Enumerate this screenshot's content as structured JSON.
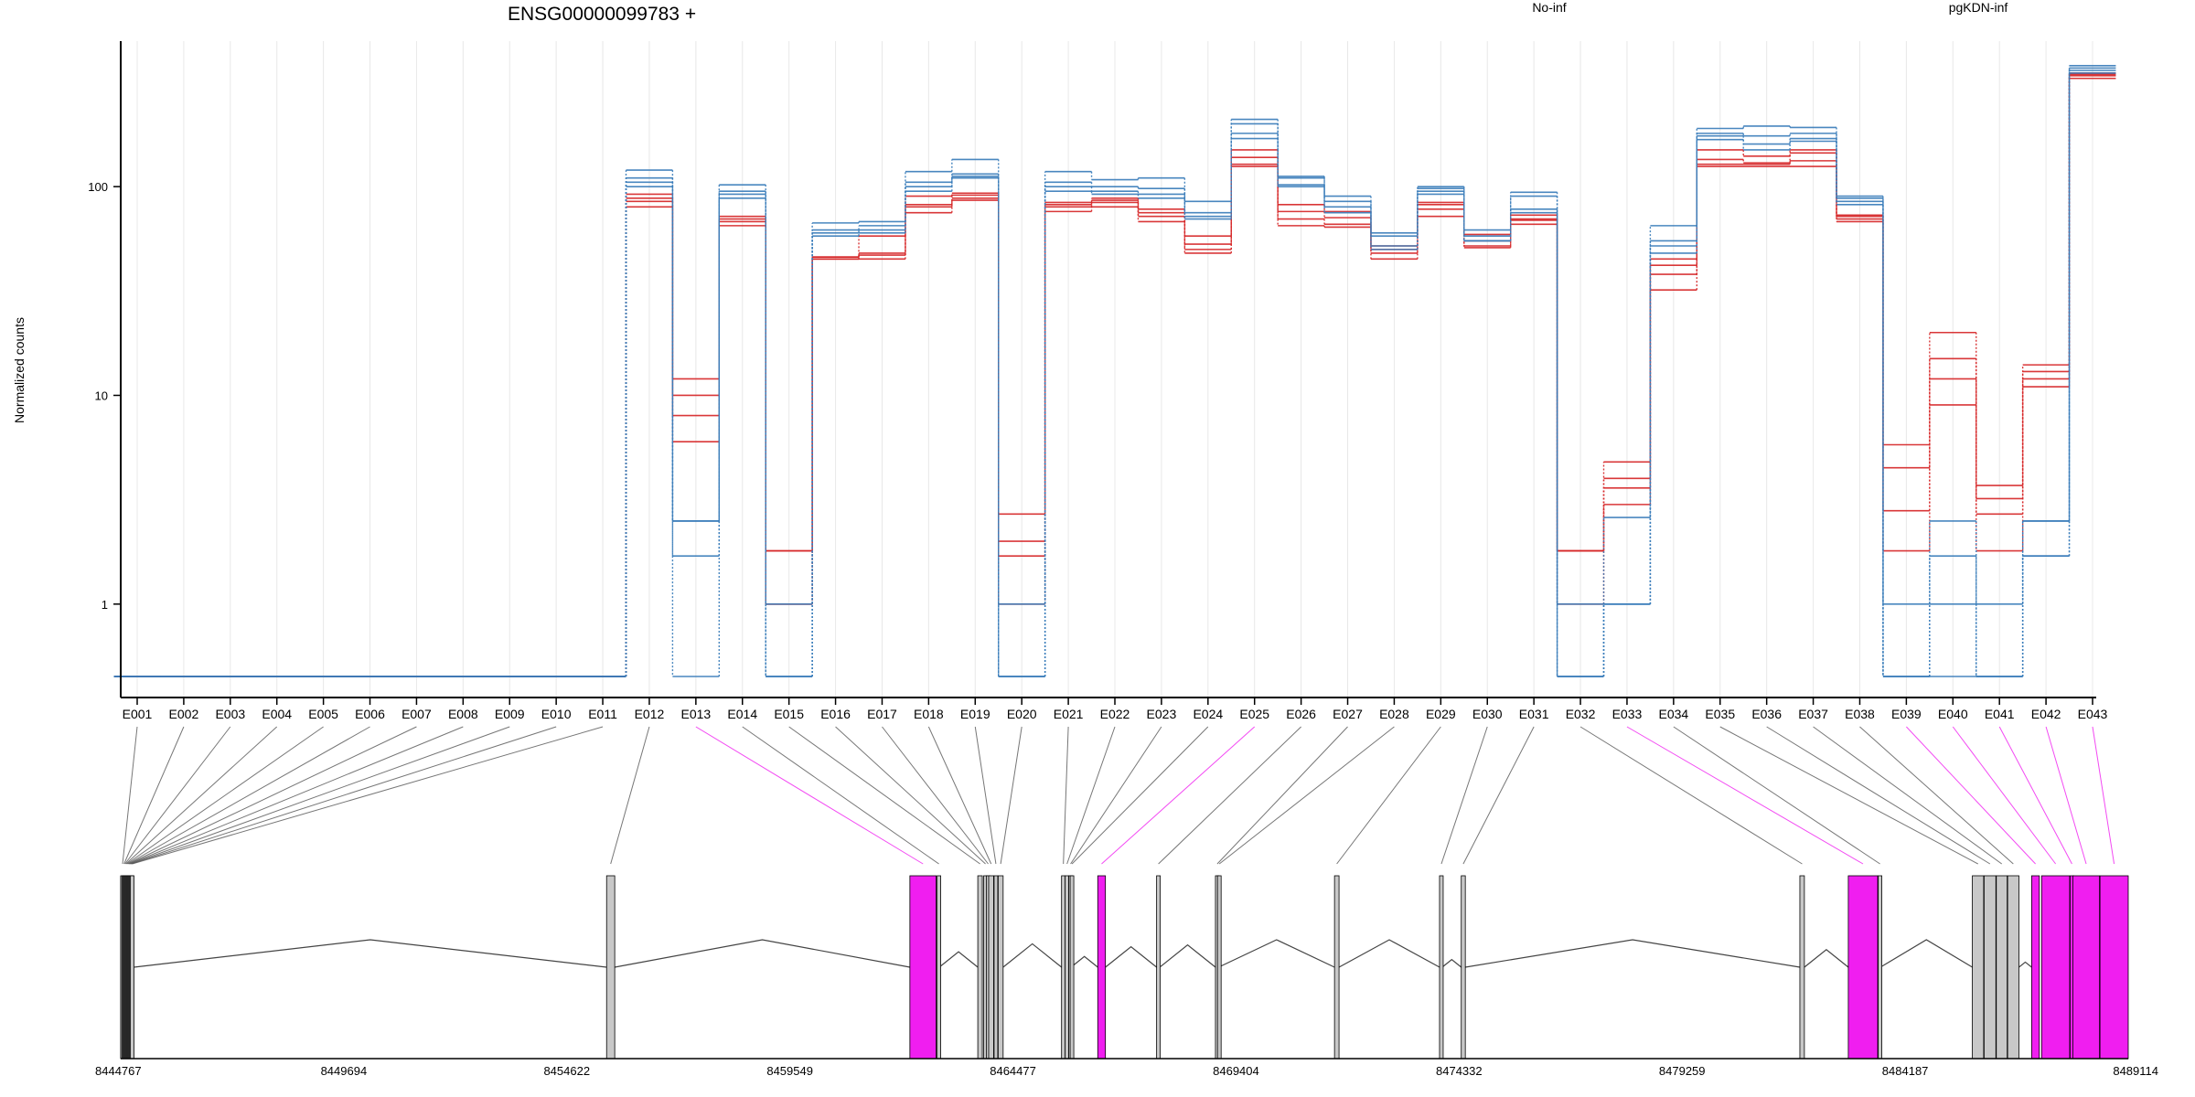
{
  "chart_data": {
    "type": "line",
    "title": "ENSG00000099783 +",
    "ylabel": "Normalized counts",
    "yscale": "log",
    "ylim": [
      0.45,
      450
    ],
    "yticks": [
      1,
      10,
      100
    ],
    "ytick_labels": [
      "1",
      "10",
      "100"
    ],
    "grid": "vertical",
    "legend_position": "top-right",
    "colors": {
      "No-inf": "#d62728",
      "pgKDN-inf": "#3a7dba",
      "highlight": "#f01ef0",
      "exon_fill": "#c8c8c8"
    },
    "exons": [
      "E001",
      "E002",
      "E003",
      "E004",
      "E005",
      "E006",
      "E007",
      "E008",
      "E009",
      "E010",
      "E011",
      "E012",
      "E013",
      "E014",
      "E015",
      "E016",
      "E017",
      "E018",
      "E019",
      "E020",
      "E021",
      "E022",
      "E023",
      "E024",
      "E025",
      "E026",
      "E027",
      "E028",
      "E029",
      "E030",
      "E031",
      "E032",
      "E033",
      "E034",
      "E035",
      "E036",
      "E037",
      "E038",
      "E039",
      "E040",
      "E041",
      "E042",
      "E043"
    ],
    "series": [
      {
        "name": "No-inf",
        "group": "No-inf",
        "values": [
          0.45,
          0.45,
          0.45,
          0.45,
          0.45,
          0.45,
          0.45,
          0.45,
          0.45,
          0.45,
          0.45,
          92,
          12,
          70,
          1.8,
          45,
          58,
          90,
          93,
          2.7,
          84,
          88,
          78,
          58,
          150,
          82,
          76,
          52,
          84,
          59,
          73,
          1.8,
          4.8,
          45,
          150,
          140,
          150,
          73,
          5.8,
          20,
          3.7,
          14,
          350
        ]
      },
      {
        "name": "No-inf",
        "group": "No-inf",
        "values": [
          0.45,
          0.45,
          0.45,
          0.45,
          0.45,
          0.45,
          0.45,
          0.45,
          0.45,
          0.45,
          0.45,
          85,
          8,
          65,
          1.0,
          45,
          45,
          75,
          88,
          1.7,
          76,
          80,
          68,
          48,
          125,
          70,
          66,
          45,
          72,
          52,
          66,
          1.0,
          3.0,
          32,
          125,
          125,
          125,
          68,
          2.8,
          12,
          2.7,
          11,
          330
        ]
      },
      {
        "name": "No-inf",
        "group": "No-inf",
        "values": [
          0.45,
          0.45,
          0.45,
          0.45,
          0.45,
          0.45,
          0.45,
          0.45,
          0.45,
          0.45,
          0.45,
          88,
          10,
          72,
          1.8,
          46,
          48,
          82,
          91,
          2.0,
          80,
          84,
          72,
          53,
          138,
          76,
          71,
          50,
          78,
          55,
          70,
          1.8,
          3.6,
          38,
          135,
          130,
          133,
          70,
          4.5,
          15,
          3.2,
          12,
          340
        ]
      },
      {
        "name": "No-inf",
        "group": "No-inf",
        "values": [
          0.45,
          0.45,
          0.45,
          0.45,
          0.45,
          0.45,
          0.45,
          0.45,
          0.45,
          0.45,
          0.45,
          80,
          6,
          68,
          1.0,
          46,
          47,
          80,
          86,
          1.0,
          82,
          86,
          75,
          50,
          128,
          65,
          64,
          48,
          82,
          51,
          69,
          1.8,
          4.0,
          42,
          128,
          128,
          145,
          72,
          1.8,
          9,
          1.8,
          13,
          345
        ]
      },
      {
        "name": "pgKDN-inf",
        "group": "pgKDN-inf",
        "values": [
          0.45,
          0.45,
          0.45,
          0.45,
          0.45,
          0.45,
          0.45,
          0.45,
          0.45,
          0.45,
          0.45,
          110,
          2.5,
          95,
          0.45,
          62,
          65,
          105,
          112,
          0.45,
          105,
          100,
          98,
          75,
          200,
          110,
          85,
          58,
          98,
          58,
          90,
          0.45,
          1.0,
          55,
          180,
          175,
          180,
          88,
          0.45,
          0.45,
          0.45,
          1.7,
          380
        ]
      },
      {
        "name": "pgKDN-inf",
        "group": "pgKDN-inf",
        "values": [
          0.45,
          0.45,
          0.45,
          0.45,
          0.45,
          0.45,
          0.45,
          0.45,
          0.45,
          0.45,
          0.45,
          120,
          1.7,
          102,
          1.0,
          67,
          68,
          118,
          135,
          1.0,
          118,
          108,
          110,
          85,
          210,
          112,
          90,
          60,
          100,
          62,
          94,
          1.0,
          2.6,
          65,
          190,
          195,
          192,
          90,
          1.0,
          2.5,
          1.0,
          2.5,
          370
        ]
      },
      {
        "name": "pgKDN-inf",
        "group": "pgKDN-inf",
        "values": [
          0.45,
          0.45,
          0.45,
          0.45,
          0.45,
          0.45,
          0.45,
          0.45,
          0.45,
          0.45,
          0.45,
          100,
          0.45,
          88,
          0.45,
          58,
          62,
          95,
          110,
          0.45,
          95,
          92,
          88,
          70,
          180,
          100,
          80,
          52,
          92,
          55,
          75,
          0.45,
          1.0,
          48,
          168,
          160,
          170,
          82,
          0.45,
          1.7,
          0.45,
          2.5,
          360
        ]
      },
      {
        "name": "pgKDN-inf",
        "group": "pgKDN-inf",
        "values": [
          0.45,
          0.45,
          0.45,
          0.45,
          0.45,
          0.45,
          0.45,
          0.45,
          0.45,
          0.45,
          0.45,
          105,
          2.5,
          92,
          0.45,
          60,
          60,
          100,
          115,
          0.45,
          100,
          95,
          92,
          72,
          170,
          102,
          75,
          50,
          95,
          55,
          78,
          0.45,
          1.0,
          52,
          175,
          150,
          165,
          85,
          0.45,
          1.0,
          0.45,
          1.7,
          350
        ]
      }
    ],
    "genomic_axis": {
      "tick_labels": [
        "8444767",
        "8449694",
        "8454622",
        "8459549",
        "8464477",
        "8469404",
        "8474332",
        "8479259",
        "8484187",
        "8489114"
      ],
      "range": [
        8444767,
        8489114
      ]
    },
    "exon_features": [
      {
        "exon": "E001",
        "start": 8444767,
        "end": 8444790,
        "highlight": false
      },
      {
        "exon": "E002",
        "start": 8444800,
        "end": 8444815,
        "highlight": false
      },
      {
        "exon": "E003",
        "start": 8444820,
        "end": 8444835,
        "highlight": false
      },
      {
        "exon": "E004",
        "start": 8444840,
        "end": 8444855,
        "highlight": false
      },
      {
        "exon": "E005",
        "start": 8444860,
        "end": 8444875,
        "highlight": false
      },
      {
        "exon": "E006",
        "start": 8444880,
        "end": 8444895,
        "highlight": false
      },
      {
        "exon": "E007",
        "start": 8444900,
        "end": 8444915,
        "highlight": false
      },
      {
        "exon": "E008",
        "start": 8444920,
        "end": 8444935,
        "highlight": false
      },
      {
        "exon": "E009",
        "start": 8444940,
        "end": 8444955,
        "highlight": false
      },
      {
        "exon": "E010",
        "start": 8444960,
        "end": 8444975,
        "highlight": false
      },
      {
        "exon": "E011",
        "start": 8444980,
        "end": 8445060,
        "highlight": false
      },
      {
        "exon": "E012",
        "start": 8455500,
        "end": 8455680,
        "highlight": false
      },
      {
        "exon": "E013",
        "start": 8462200,
        "end": 8462780,
        "highlight": true
      },
      {
        "exon": "E014",
        "start": 8462800,
        "end": 8462850,
        "highlight": false
      },
      {
        "exon": "E015",
        "start": 8463700,
        "end": 8463800,
        "highlight": false
      },
      {
        "exon": "E016",
        "start": 8463830,
        "end": 8463880,
        "highlight": false
      },
      {
        "exon": "E017",
        "start": 8463890,
        "end": 8463930,
        "highlight": false
      },
      {
        "exon": "E018",
        "start": 8463940,
        "end": 8464050,
        "highlight": false
      },
      {
        "exon": "E019",
        "start": 8464060,
        "end": 8464120,
        "highlight": false
      },
      {
        "exon": "E020",
        "start": 8464150,
        "end": 8464260,
        "highlight": false
      },
      {
        "exon": "E021",
        "start": 8465550,
        "end": 8465620,
        "highlight": false
      },
      {
        "exon": "E022",
        "start": 8465630,
        "end": 8465700,
        "highlight": false
      },
      {
        "exon": "E023",
        "start": 8465710,
        "end": 8465730,
        "highlight": false
      },
      {
        "exon": "E024",
        "start": 8465740,
        "end": 8465760,
        "highlight": false
      },
      {
        "exon": "E025",
        "start": 8466350,
        "end": 8466520,
        "highlight": true
      },
      {
        "exon": "E026",
        "start": 8467650,
        "end": 8467720,
        "highlight": false
      },
      {
        "exon": "E027",
        "start": 8468950,
        "end": 8468990,
        "highlight": false
      },
      {
        "exon": "E028",
        "start": 8468995,
        "end": 8469020,
        "highlight": false
      },
      {
        "exon": "E029",
        "start": 8471580,
        "end": 8471680,
        "highlight": false
      },
      {
        "exon": "E030",
        "start": 8473900,
        "end": 8473960,
        "highlight": false
      },
      {
        "exon": "E031",
        "start": 8474380,
        "end": 8474470,
        "highlight": false
      },
      {
        "exon": "E032",
        "start": 8481860,
        "end": 8481960,
        "highlight": false
      },
      {
        "exon": "E033",
        "start": 8482930,
        "end": 8483580,
        "highlight": true
      },
      {
        "exon": "E034",
        "start": 8483590,
        "end": 8483640,
        "highlight": false
      },
      {
        "exon": "E035",
        "start": 8485670,
        "end": 8485920,
        "highlight": false
      },
      {
        "exon": "E036",
        "start": 8485930,
        "end": 8486190,
        "highlight": false
      },
      {
        "exon": "E037",
        "start": 8486200,
        "end": 8486440,
        "highlight": false
      },
      {
        "exon": "E038",
        "start": 8486450,
        "end": 8486700,
        "highlight": false
      },
      {
        "exon": "E039",
        "start": 8486980,
        "end": 8487150,
        "highlight": true
      },
      {
        "exon": "E040",
        "start": 8487200,
        "end": 8487820,
        "highlight": true
      },
      {
        "exon": "E041",
        "start": 8487830,
        "end": 8487880,
        "highlight": true
      },
      {
        "exon": "E042",
        "start": 8487890,
        "end": 8488480,
        "highlight": true
      },
      {
        "exon": "E043",
        "start": 8488490,
        "end": 8489114,
        "highlight": true
      }
    ]
  },
  "legend": [
    {
      "label": "No-inf",
      "color": "#d62728"
    },
    {
      "label": "pgKDN-inf",
      "color": "#3a7dba"
    }
  ]
}
